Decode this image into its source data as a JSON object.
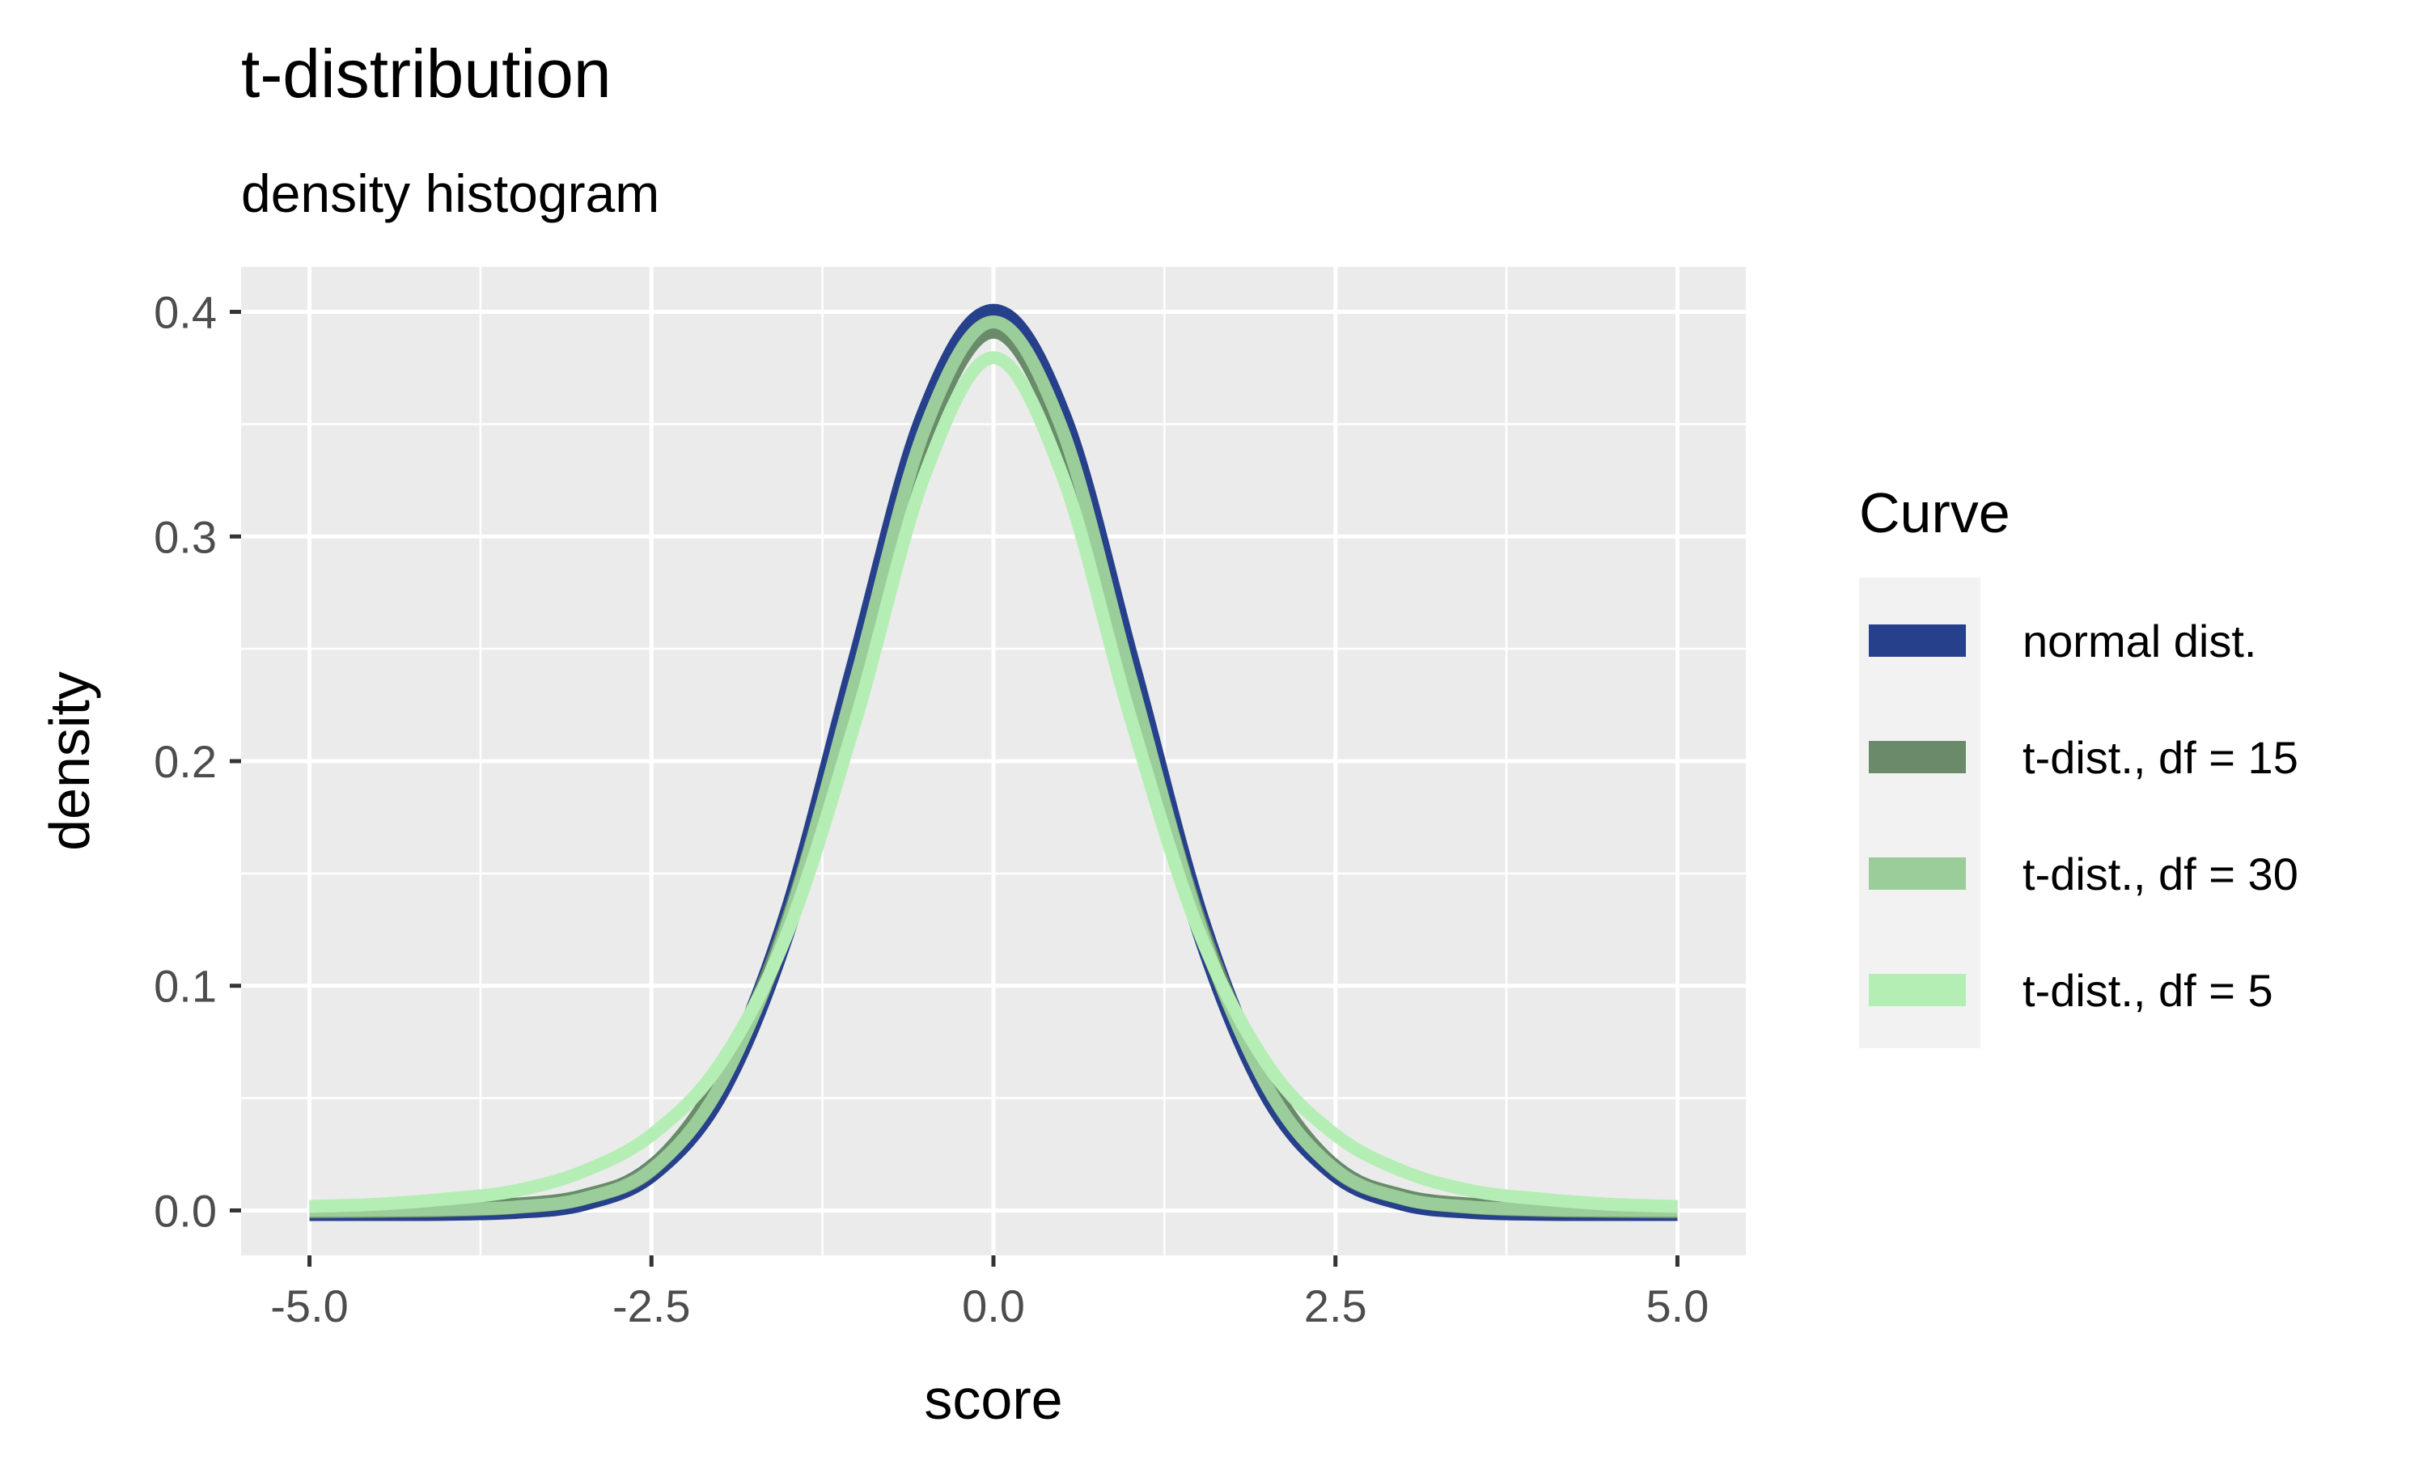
{
  "chart_data": {
    "type": "line",
    "title": "t-distribution",
    "subtitle": "density histogram",
    "xlabel": "score",
    "ylabel": "density",
    "xlim": [
      -5.0,
      5.0
    ],
    "ylim": [
      0.0,
      0.4
    ],
    "xticks": [
      "-5.0",
      "-2.5",
      "0.0",
      "2.5",
      "5.0"
    ],
    "yticks": [
      "0.0",
      "0.1",
      "0.2",
      "0.3",
      "0.4"
    ],
    "grid": true,
    "legend": {
      "title": "Curve",
      "position": "right"
    },
    "x": [
      -5.0,
      -4.5,
      -4.0,
      -3.5,
      -3.0,
      -2.5,
      -2.0,
      -1.5,
      -1.0,
      -0.5,
      0.0,
      0.5,
      1.0,
      1.5,
      2.0,
      2.5,
      3.0,
      3.5,
      4.0,
      4.5,
      5.0
    ],
    "series": [
      {
        "name": "normal dist.",
        "color": "#27408b",
        "values": [
          0.0,
          0.0,
          0.0001,
          0.0009,
          0.0044,
          0.0175,
          0.054,
          0.1295,
          0.242,
          0.3521,
          0.3989,
          0.3521,
          0.242,
          0.1295,
          0.054,
          0.0175,
          0.0044,
          0.0009,
          0.0001,
          0.0,
          0.0
        ]
      },
      {
        "name": "t-dist., df = 15",
        "color": "#698b69",
        "values": [
          0.0001,
          0.0003,
          0.0007,
          0.002,
          0.0059,
          0.0187,
          0.0579,
          0.1286,
          0.2338,
          0.3443,
          0.3917,
          0.3443,
          0.2338,
          0.1286,
          0.0579,
          0.0187,
          0.0059,
          0.002,
          0.0007,
          0.0003,
          0.0001
        ]
      },
      {
        "name": "t-dist., df = 30",
        "color": "#9bcd9b",
        "values": [
          0.0,
          0.0001,
          0.0004,
          0.0015,
          0.0052,
          0.0181,
          0.0553,
          0.1287,
          0.2378,
          0.3482,
          0.3955,
          0.3482,
          0.2378,
          0.1287,
          0.0553,
          0.0181,
          0.0052,
          0.0015,
          0.0004,
          0.0001,
          0.0
        ]
      },
      {
        "name": "t-dist., df = 5",
        "color": "#b4eeb4",
        "values": [
          0.0018,
          0.0028,
          0.0051,
          0.0087,
          0.0173,
          0.0336,
          0.0651,
          0.1245,
          0.2197,
          0.3279,
          0.3796,
          0.3279,
          0.2197,
          0.1245,
          0.0651,
          0.0336,
          0.0173,
          0.0087,
          0.0051,
          0.0028,
          0.0018
        ]
      }
    ]
  }
}
